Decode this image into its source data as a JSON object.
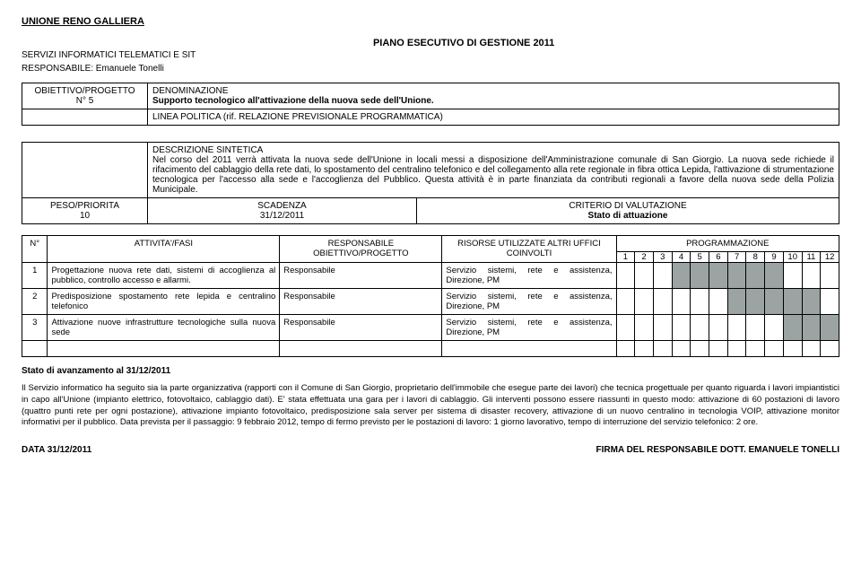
{
  "header": {
    "org": "UNIONE RENO GALLIERA",
    "plan": "PIANO ESECUTIVO DI GESTIONE 2011",
    "servizi": "SERVIZI INFORMATICI TELEMATICI E SIT",
    "resp": "RESPONSABILE: Emanuele Tonelli"
  },
  "box1": {
    "obj_label": "OBIETTIVO/PROGETTO",
    "obj_n": "N° 5",
    "denom_label": "DENOMINAZIONE",
    "denom_val": "Supporto tecnologico all'attivazione della nuova sede dell'Unione.",
    "linea": "LINEA POLITICA (rif. RELAZIONE PREVISIONALE PROGRAMMATICA)"
  },
  "box2": {
    "descr_label": "DESCRIZIONE SINTETICA",
    "descr_text": "Nel corso del 2011 verrà attivata la nuova sede dell'Unione in locali messi a disposizione dell'Amministrazione comunale di San Giorgio. La nuova sede richiede il rifacimento del cablaggio della rete dati, lo spostamento del centralino telefonico e del collegamento alla rete regionale in fibra ottica Lepida, l'attivazione di strumentazione tecnologica per l'accesso alla sede e l'accoglienza del Pubblico. Questa attività è in parte finanziata da contributi regionali a favore della nuova sede della Polizia Municipale.",
    "peso_label": "PESO/PRIORITA",
    "peso_val": "10",
    "scad_label": "SCADENZA",
    "scad_val": "31/12/2011",
    "crit_label": "CRITERIO DI VALUTAZIONE",
    "crit_val": "Stato di attuazione"
  },
  "activity": {
    "headers": {
      "n": "N°",
      "fasi": "ATTIVITA'/FASI",
      "resp": "RESPONSABILE OBIETTIVO/PROGETTO",
      "risorse": "RISORSE UTILIZZATE ALTRI UFFICI COINVOLTI",
      "prog": "PROGRAMMAZIONE"
    },
    "months": [
      "1",
      "2",
      "3",
      "4",
      "5",
      "6",
      "7",
      "8",
      "9",
      "10",
      "11",
      "12"
    ],
    "rows": [
      {
        "n": "1",
        "fasi": "Progettazione nuova rete dati, sistemi di accoglienza al pubblico, controllo accesso e allarmi.",
        "resp": "Responsabile",
        "risorse": "Servizio sistemi, rete e assistenza, Direzione, PM",
        "shade": [
          0,
          0,
          0,
          1,
          1,
          1,
          1,
          1,
          1,
          0,
          0,
          0
        ]
      },
      {
        "n": "2",
        "fasi": "Predisposizione spostamento rete lepida e centralino telefonico",
        "resp": "Responsabile",
        "risorse": "Servizio sistemi, rete e assistenza, Direzione, PM",
        "shade": [
          0,
          0,
          0,
          0,
          0,
          0,
          1,
          1,
          1,
          1,
          1,
          0
        ]
      },
      {
        "n": "3",
        "fasi": "Attivazione nuove infrastrutture tecnologiche sulla nuova sede",
        "resp": "Responsabile",
        "risorse": "Servizio sistemi, rete e assistenza, Direzione, PM",
        "shade": [
          0,
          0,
          0,
          0,
          0,
          0,
          0,
          0,
          0,
          1,
          1,
          1
        ]
      }
    ]
  },
  "status": {
    "title": "Stato di avanzamento al 31/12/2011",
    "text": "Il Servizio informatico ha seguito sia la parte organizzativa (rapporti con il Comune di San Giorgio, proprietario dell'immobile che esegue parte dei lavori) che tecnica progettuale per quanto riguarda i lavori impiantistici in capo all'Unione (impianto elettrico, fotovoltaico, cablaggio dati). E' stata effettuata una gara per i lavori di cablaggio. Gli interventi possono essere riassunti in questo modo: attivazione di 60 postazioni di lavoro (quattro punti rete per ogni postazione), attivazione impianto fotovoltaico, predisposizione sala server per sistema di disaster recovery, attivazione di un nuovo centralino in tecnologia VOIP, attivazione monitor informativi per il pubblico. Data prevista per il passaggio: 9 febbraio 2012, tempo di fermo previsto per le postazioni di lavoro: 1 giorno lavorativo, tempo di interruzione del servizio telefonico: 2 ore."
  },
  "footer": {
    "left": "DATA 31/12/2011",
    "right": "FIRMA DEL RESPONSABILE DOTT. EMANUELE TONELLI"
  },
  "colors": {
    "shade": "#9ca3a3"
  }
}
